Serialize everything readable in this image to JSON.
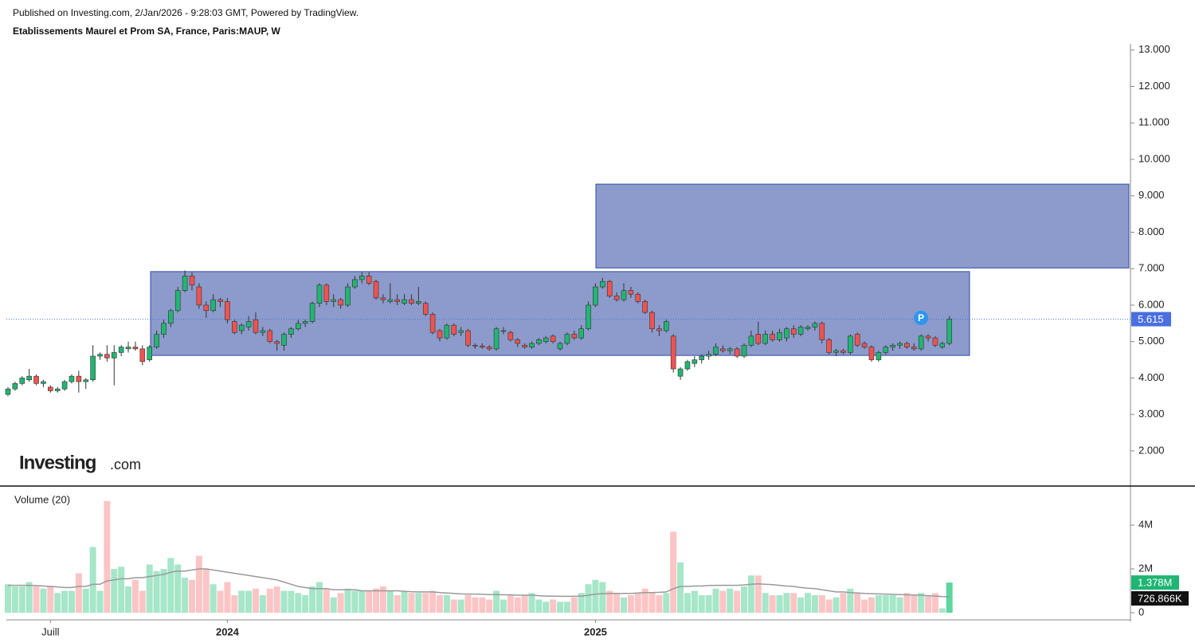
{
  "header": {
    "published": "Published on Investing.com, 2/Jan/2026 - 9:28:03 GMT, Powered by TradingView.",
    "title": "Etablissements Maurel et Prom SA, France, Paris:MAUP, W"
  },
  "logo": {
    "name": "Investing",
    "suffix": ".com"
  },
  "chart_data": {
    "type": "candlestick",
    "categories": [
      null,
      null,
      null,
      null,
      null,
      null,
      "Juill",
      null,
      null,
      null,
      null,
      null,
      null,
      null,
      null,
      null,
      null,
      null,
      null,
      null,
      null,
      null,
      null,
      null,
      null,
      null,
      null,
      null,
      null,
      null,
      null,
      "2024",
      null,
      null,
      null,
      null,
      null,
      null,
      null,
      null,
      null,
      null,
      null,
      null,
      null,
      null,
      null,
      null,
      null,
      null,
      null,
      null,
      null,
      null,
      null,
      null,
      null,
      null,
      null,
      null,
      null,
      null,
      null,
      null,
      null,
      null,
      null,
      null,
      null,
      null,
      null,
      null,
      null,
      null,
      null,
      null,
      null,
      null,
      null,
      null,
      null,
      null,
      null,
      "2025",
      null,
      null,
      null,
      null,
      null,
      null,
      null,
      null,
      null,
      null,
      null,
      null,
      null,
      null,
      null,
      null,
      null,
      null,
      null,
      null,
      null,
      null,
      null,
      null,
      null,
      null,
      null,
      null,
      null,
      null,
      null,
      null,
      null,
      null,
      null,
      null,
      null,
      null,
      null,
      null,
      null,
      null,
      null,
      null,
      null,
      null,
      null,
      null,
      null,
      null
    ],
    "candles": [
      [
        3.55,
        3.75,
        3.5,
        3.7
      ],
      [
        3.7,
        3.9,
        3.65,
        3.85
      ],
      [
        3.85,
        4.05,
        3.8,
        4.0
      ],
      [
        3.95,
        4.25,
        3.9,
        4.05
      ],
      [
        4.05,
        4.1,
        3.8,
        3.85
      ],
      [
        3.85,
        3.95,
        3.75,
        3.9
      ],
      [
        3.75,
        3.8,
        3.6,
        3.65
      ],
      [
        3.65,
        3.75,
        3.6,
        3.7
      ],
      [
        3.7,
        3.95,
        3.65,
        3.9
      ],
      [
        3.9,
        4.1,
        3.85,
        4.05
      ],
      [
        4.05,
        4.2,
        3.6,
        3.9
      ],
      [
        3.9,
        4.0,
        3.7,
        3.95
      ],
      [
        3.95,
        4.9,
        3.9,
        4.6
      ],
      [
        4.6,
        4.7,
        4.5,
        4.65
      ],
      [
        4.65,
        4.9,
        4.45,
        4.55
      ],
      [
        4.55,
        4.9,
        3.8,
        4.7
      ],
      [
        4.7,
        4.9,
        4.6,
        4.85
      ],
      [
        4.8,
        5.0,
        4.7,
        4.85
      ],
      [
        4.85,
        5.0,
        4.75,
        4.8
      ],
      [
        4.8,
        4.9,
        4.35,
        4.45
      ],
      [
        4.5,
        4.9,
        4.45,
        4.85
      ],
      [
        4.85,
        5.3,
        4.8,
        5.2
      ],
      [
        5.2,
        5.6,
        5.1,
        5.5
      ],
      [
        5.5,
        5.9,
        5.4,
        5.85
      ],
      [
        5.85,
        6.5,
        5.8,
        6.4
      ],
      [
        6.4,
        6.95,
        6.35,
        6.8
      ],
      [
        6.8,
        6.9,
        6.4,
        6.55
      ],
      [
        6.5,
        6.6,
        5.9,
        6.0
      ],
      [
        6.0,
        6.1,
        5.65,
        5.85
      ],
      [
        5.85,
        6.3,
        5.8,
        6.15
      ],
      [
        6.15,
        6.2,
        5.95,
        6.1
      ],
      [
        6.1,
        6.2,
        5.5,
        5.6
      ],
      [
        5.55,
        5.6,
        5.2,
        5.25
      ],
      [
        5.3,
        5.5,
        5.2,
        5.45
      ],
      [
        5.4,
        5.7,
        5.3,
        5.55
      ],
      [
        5.6,
        5.8,
        5.2,
        5.25
      ],
      [
        5.25,
        5.4,
        5.15,
        5.3
      ],
      [
        5.3,
        5.35,
        4.95,
        5.0
      ],
      [
        5.0,
        5.05,
        4.75,
        4.95
      ],
      [
        4.9,
        5.25,
        4.75,
        5.2
      ],
      [
        5.2,
        5.4,
        5.1,
        5.35
      ],
      [
        5.35,
        5.6,
        5.3,
        5.5
      ],
      [
        5.5,
        5.6,
        5.4,
        5.55
      ],
      [
        5.55,
        6.1,
        5.5,
        6.05
      ],
      [
        6.05,
        6.6,
        5.95,
        6.55
      ],
      [
        6.55,
        6.6,
        6.0,
        6.1
      ],
      [
        6.1,
        6.3,
        5.95,
        6.15
      ],
      [
        6.15,
        6.2,
        5.9,
        6.0
      ],
      [
        6.0,
        6.6,
        5.95,
        6.5
      ],
      [
        6.5,
        6.8,
        6.45,
        6.7
      ],
      [
        6.7,
        6.9,
        6.6,
        6.8
      ],
      [
        6.8,
        6.9,
        6.55,
        6.6
      ],
      [
        6.65,
        6.7,
        6.15,
        6.2
      ],
      [
        6.2,
        6.3,
        6.05,
        6.15
      ],
      [
        6.1,
        6.6,
        6.05,
        6.15
      ],
      [
        6.15,
        6.3,
        6.0,
        6.1
      ],
      [
        6.05,
        6.3,
        6.0,
        6.15
      ],
      [
        6.15,
        6.3,
        6.0,
        6.05
      ],
      [
        6.05,
        6.5,
        6.0,
        6.1
      ],
      [
        6.05,
        6.1,
        5.7,
        5.75
      ],
      [
        5.75,
        5.8,
        5.2,
        5.25
      ],
      [
        5.3,
        5.35,
        5.0,
        5.1
      ],
      [
        5.1,
        5.5,
        5.05,
        5.45
      ],
      [
        5.45,
        5.5,
        5.15,
        5.2
      ],
      [
        5.25,
        5.4,
        5.15,
        5.3
      ],
      [
        5.3,
        5.35,
        4.85,
        4.9
      ],
      [
        4.9,
        4.95,
        4.8,
        4.88
      ],
      [
        4.88,
        4.95,
        4.8,
        4.85
      ],
      [
        4.85,
        4.9,
        4.75,
        4.8
      ],
      [
        4.8,
        5.4,
        4.75,
        5.35
      ],
      [
        5.3,
        5.4,
        5.2,
        5.3
      ],
      [
        5.25,
        5.3,
        5.0,
        5.05
      ],
      [
        5.05,
        5.1,
        4.85,
        4.95
      ],
      [
        4.9,
        4.95,
        4.8,
        4.85
      ],
      [
        4.85,
        5.0,
        4.8,
        4.95
      ],
      [
        4.95,
        5.1,
        4.9,
        5.05
      ],
      [
        5.0,
        5.15,
        4.95,
        5.1
      ],
      [
        5.15,
        5.2,
        4.95,
        5.0
      ],
      [
        4.8,
        5.0,
        4.75,
        4.95
      ],
      [
        4.95,
        5.25,
        4.9,
        5.2
      ],
      [
        5.2,
        5.3,
        5.05,
        5.1
      ],
      [
        5.1,
        5.45,
        5.05,
        5.35
      ],
      [
        5.35,
        6.1,
        5.3,
        6.0
      ],
      [
        6.0,
        6.6,
        5.95,
        6.5
      ],
      [
        6.5,
        6.75,
        6.45,
        6.65
      ],
      [
        6.65,
        6.7,
        6.2,
        6.25
      ],
      [
        6.25,
        6.35,
        6.1,
        6.15
      ],
      [
        6.15,
        6.6,
        6.1,
        6.4
      ],
      [
        6.4,
        6.5,
        6.2,
        6.3
      ],
      [
        6.3,
        6.35,
        6.05,
        6.1
      ],
      [
        6.1,
        6.15,
        5.75,
        5.8
      ],
      [
        5.8,
        5.85,
        5.25,
        5.35
      ],
      [
        5.35,
        5.45,
        5.15,
        5.3
      ],
      [
        5.3,
        5.6,
        5.25,
        5.55
      ],
      [
        5.15,
        5.2,
        4.15,
        4.25
      ],
      [
        4.05,
        4.3,
        3.95,
        4.25
      ],
      [
        4.25,
        4.5,
        4.2,
        4.45
      ],
      [
        4.4,
        4.6,
        4.3,
        4.5
      ],
      [
        4.5,
        4.65,
        4.4,
        4.6
      ],
      [
        4.6,
        4.75,
        4.5,
        4.65
      ],
      [
        4.65,
        4.95,
        4.6,
        4.85
      ],
      [
        4.8,
        4.9,
        4.7,
        4.75
      ],
      [
        4.75,
        4.85,
        4.65,
        4.8
      ],
      [
        4.8,
        4.85,
        4.55,
        4.6
      ],
      [
        4.6,
        4.95,
        4.55,
        4.9
      ],
      [
        4.9,
        5.3,
        4.85,
        5.15
      ],
      [
        5.2,
        5.55,
        4.9,
        4.95
      ],
      [
        4.95,
        5.3,
        4.9,
        5.2
      ],
      [
        5.2,
        5.3,
        5.0,
        5.05
      ],
      [
        5.05,
        5.35,
        5.0,
        5.25
      ],
      [
        5.1,
        5.4,
        5.0,
        5.35
      ],
      [
        5.35,
        5.45,
        5.1,
        5.2
      ],
      [
        5.2,
        5.45,
        5.15,
        5.4
      ],
      [
        5.35,
        5.45,
        5.3,
        5.4
      ],
      [
        5.4,
        5.55,
        5.3,
        5.5
      ],
      [
        5.5,
        5.55,
        4.95,
        5.05
      ],
      [
        5.05,
        5.1,
        4.65,
        4.7
      ],
      [
        4.7,
        4.8,
        4.6,
        4.75
      ],
      [
        4.75,
        4.8,
        4.65,
        4.7
      ],
      [
        4.7,
        5.2,
        4.65,
        5.15
      ],
      [
        5.2,
        5.25,
        4.85,
        4.9
      ],
      [
        4.95,
        5.0,
        4.8,
        4.85
      ],
      [
        4.85,
        4.9,
        4.45,
        4.5
      ],
      [
        4.5,
        4.75,
        4.45,
        4.7
      ],
      [
        4.7,
        4.9,
        4.65,
        4.85
      ],
      [
        4.85,
        4.95,
        4.75,
        4.9
      ],
      [
        4.9,
        5.0,
        4.8,
        4.95
      ],
      [
        4.95,
        5.0,
        4.8,
        4.85
      ],
      [
        4.85,
        4.95,
        4.75,
        4.8
      ],
      [
        4.8,
        5.2,
        4.75,
        5.15
      ],
      [
        5.15,
        5.2,
        5.0,
        5.1
      ],
      [
        5.1,
        5.15,
        4.85,
        4.9
      ],
      [
        4.85,
        5.0,
        4.8,
        4.95
      ],
      [
        4.95,
        5.7,
        4.9,
        5.615
      ]
    ],
    "up_color": "#22b573",
    "down_color": "#ef5350",
    "ylim": [
      1.08,
      13.17
    ],
    "yticks": [
      {
        "value": 2,
        "label": "2.000"
      },
      {
        "value": 3,
        "label": "3.000"
      },
      {
        "value": 4,
        "label": "4.000"
      },
      {
        "value": 5,
        "label": "5.000"
      },
      {
        "value": 6,
        "label": "6.000"
      },
      {
        "value": 7,
        "label": "7.000"
      },
      {
        "value": 8,
        "label": "8.000"
      },
      {
        "value": 9,
        "label": "9.000"
      },
      {
        "value": 10,
        "label": "10.000"
      },
      {
        "value": 11,
        "label": "11.000"
      },
      {
        "value": 12,
        "label": "12.000"
      },
      {
        "value": 13,
        "label": "13.000"
      }
    ],
    "last_price": 5.615,
    "last_price_color": "#4a6fe0",
    "zones": [
      {
        "low": 4.62,
        "high": 6.92,
        "color": "#8c9bcb"
      },
      {
        "low": 7.02,
        "high": 9.32,
        "color": "#8c9bcb"
      }
    ],
    "marker": {
      "label": "P",
      "index": 129,
      "value": 5.65,
      "color": "#2d96f0"
    },
    "volume": {
      "title": "Volume (20)",
      "values": [
        1.3,
        1.2,
        1.2,
        1.4,
        1.2,
        1.1,
        1.2,
        0.9,
        1.0,
        1.0,
        1.8,
        1.1,
        3.0,
        1.0,
        5.1,
        2.0,
        2.1,
        1.2,
        1.5,
        1.0,
        2.2,
        1.9,
        2.0,
        2.5,
        2.2,
        1.6,
        1.5,
        2.6,
        2.0,
        1.3,
        1.0,
        1.4,
        0.8,
        1.0,
        1.0,
        1.1,
        0.8,
        1.1,
        1.2,
        1.0,
        1.0,
        0.9,
        0.8,
        1.2,
        1.4,
        1.1,
        0.7,
        0.9,
        1.1,
        1.0,
        1.0,
        1.0,
        1.1,
        1.2,
        1.0,
        0.8,
        1.0,
        0.9,
        0.9,
        0.9,
        1.0,
        0.8,
        0.8,
        0.6,
        0.6,
        0.8,
        0.7,
        0.7,
        0.6,
        1.0,
        0.6,
        0.8,
        0.7,
        0.8,
        0.9,
        0.6,
        0.5,
        0.6,
        0.5,
        0.5,
        0.7,
        0.9,
        1.3,
        1.5,
        1.4,
        1.0,
        0.9,
        0.7,
        0.8,
        0.9,
        1.1,
        0.9,
        0.8,
        0.9,
        3.7,
        2.3,
        0.9,
        1.0,
        0.8,
        0.8,
        1.1,
        1.0,
        1.1,
        1.0,
        1.2,
        1.7,
        1.7,
        0.9,
        0.8,
        0.8,
        0.9,
        0.9,
        0.7,
        0.9,
        0.8,
        0.8,
        0.6,
        0.7,
        0.9,
        1.1,
        0.9,
        0.6,
        0.7,
        0.8,
        0.8,
        0.8,
        0.7,
        0.9,
        0.8,
        0.9,
        0.8,
        0.9,
        0.2,
        1.378
      ],
      "ma": [
        1.25,
        1.25,
        1.25,
        1.25,
        1.24,
        1.22,
        1.2,
        1.18,
        1.15,
        1.15,
        1.2,
        1.2,
        1.3,
        1.3,
        1.45,
        1.5,
        1.55,
        1.55,
        1.6,
        1.6,
        1.65,
        1.7,
        1.75,
        1.85,
        1.9,
        1.9,
        1.95,
        2.0,
        2.0,
        1.95,
        1.9,
        1.85,
        1.8,
        1.75,
        1.7,
        1.65,
        1.6,
        1.55,
        1.5,
        1.4,
        1.3,
        1.2,
        1.15,
        1.1,
        1.1,
        1.1,
        1.05,
        1.05,
        1.05,
        1.05,
        1.0,
        1.0,
        1.0,
        1.0,
        1.0,
        1.0,
        0.98,
        0.96,
        0.95,
        0.95,
        0.95,
        0.92,
        0.9,
        0.88,
        0.86,
        0.85,
        0.85,
        0.84,
        0.83,
        0.83,
        0.82,
        0.82,
        0.8,
        0.8,
        0.8,
        0.78,
        0.76,
        0.76,
        0.75,
        0.75,
        0.75,
        0.76,
        0.8,
        0.85,
        0.87,
        0.88,
        0.88,
        0.88,
        0.88,
        0.9,
        0.92,
        0.92,
        0.93,
        0.95,
        1.1,
        1.2,
        1.2,
        1.22,
        1.22,
        1.24,
        1.25,
        1.25,
        1.25,
        1.25,
        1.27,
        1.3,
        1.32,
        1.3,
        1.28,
        1.25,
        1.22,
        1.2,
        1.15,
        1.12,
        1.1,
        1.05,
        1.0,
        0.95,
        0.95,
        0.92,
        0.9,
        0.88,
        0.87,
        0.86,
        0.85,
        0.84,
        0.83,
        0.82,
        0.81,
        0.8,
        0.78,
        0.76,
        0.74,
        0.726866
      ],
      "value_label": "1.378M",
      "ma_label": "726.866K",
      "up_color": "#a6e6c9",
      "down_color": "#fcc5c5",
      "last_color": "#5dd6a0",
      "ma_color": "#9a9a9a",
      "ylim": [
        -0.4,
        5.71
      ],
      "yticks": [
        {
          "value": 4,
          "label": "4M"
        },
        {
          "value": 2,
          "label": "2M"
        },
        0
      ]
    }
  }
}
